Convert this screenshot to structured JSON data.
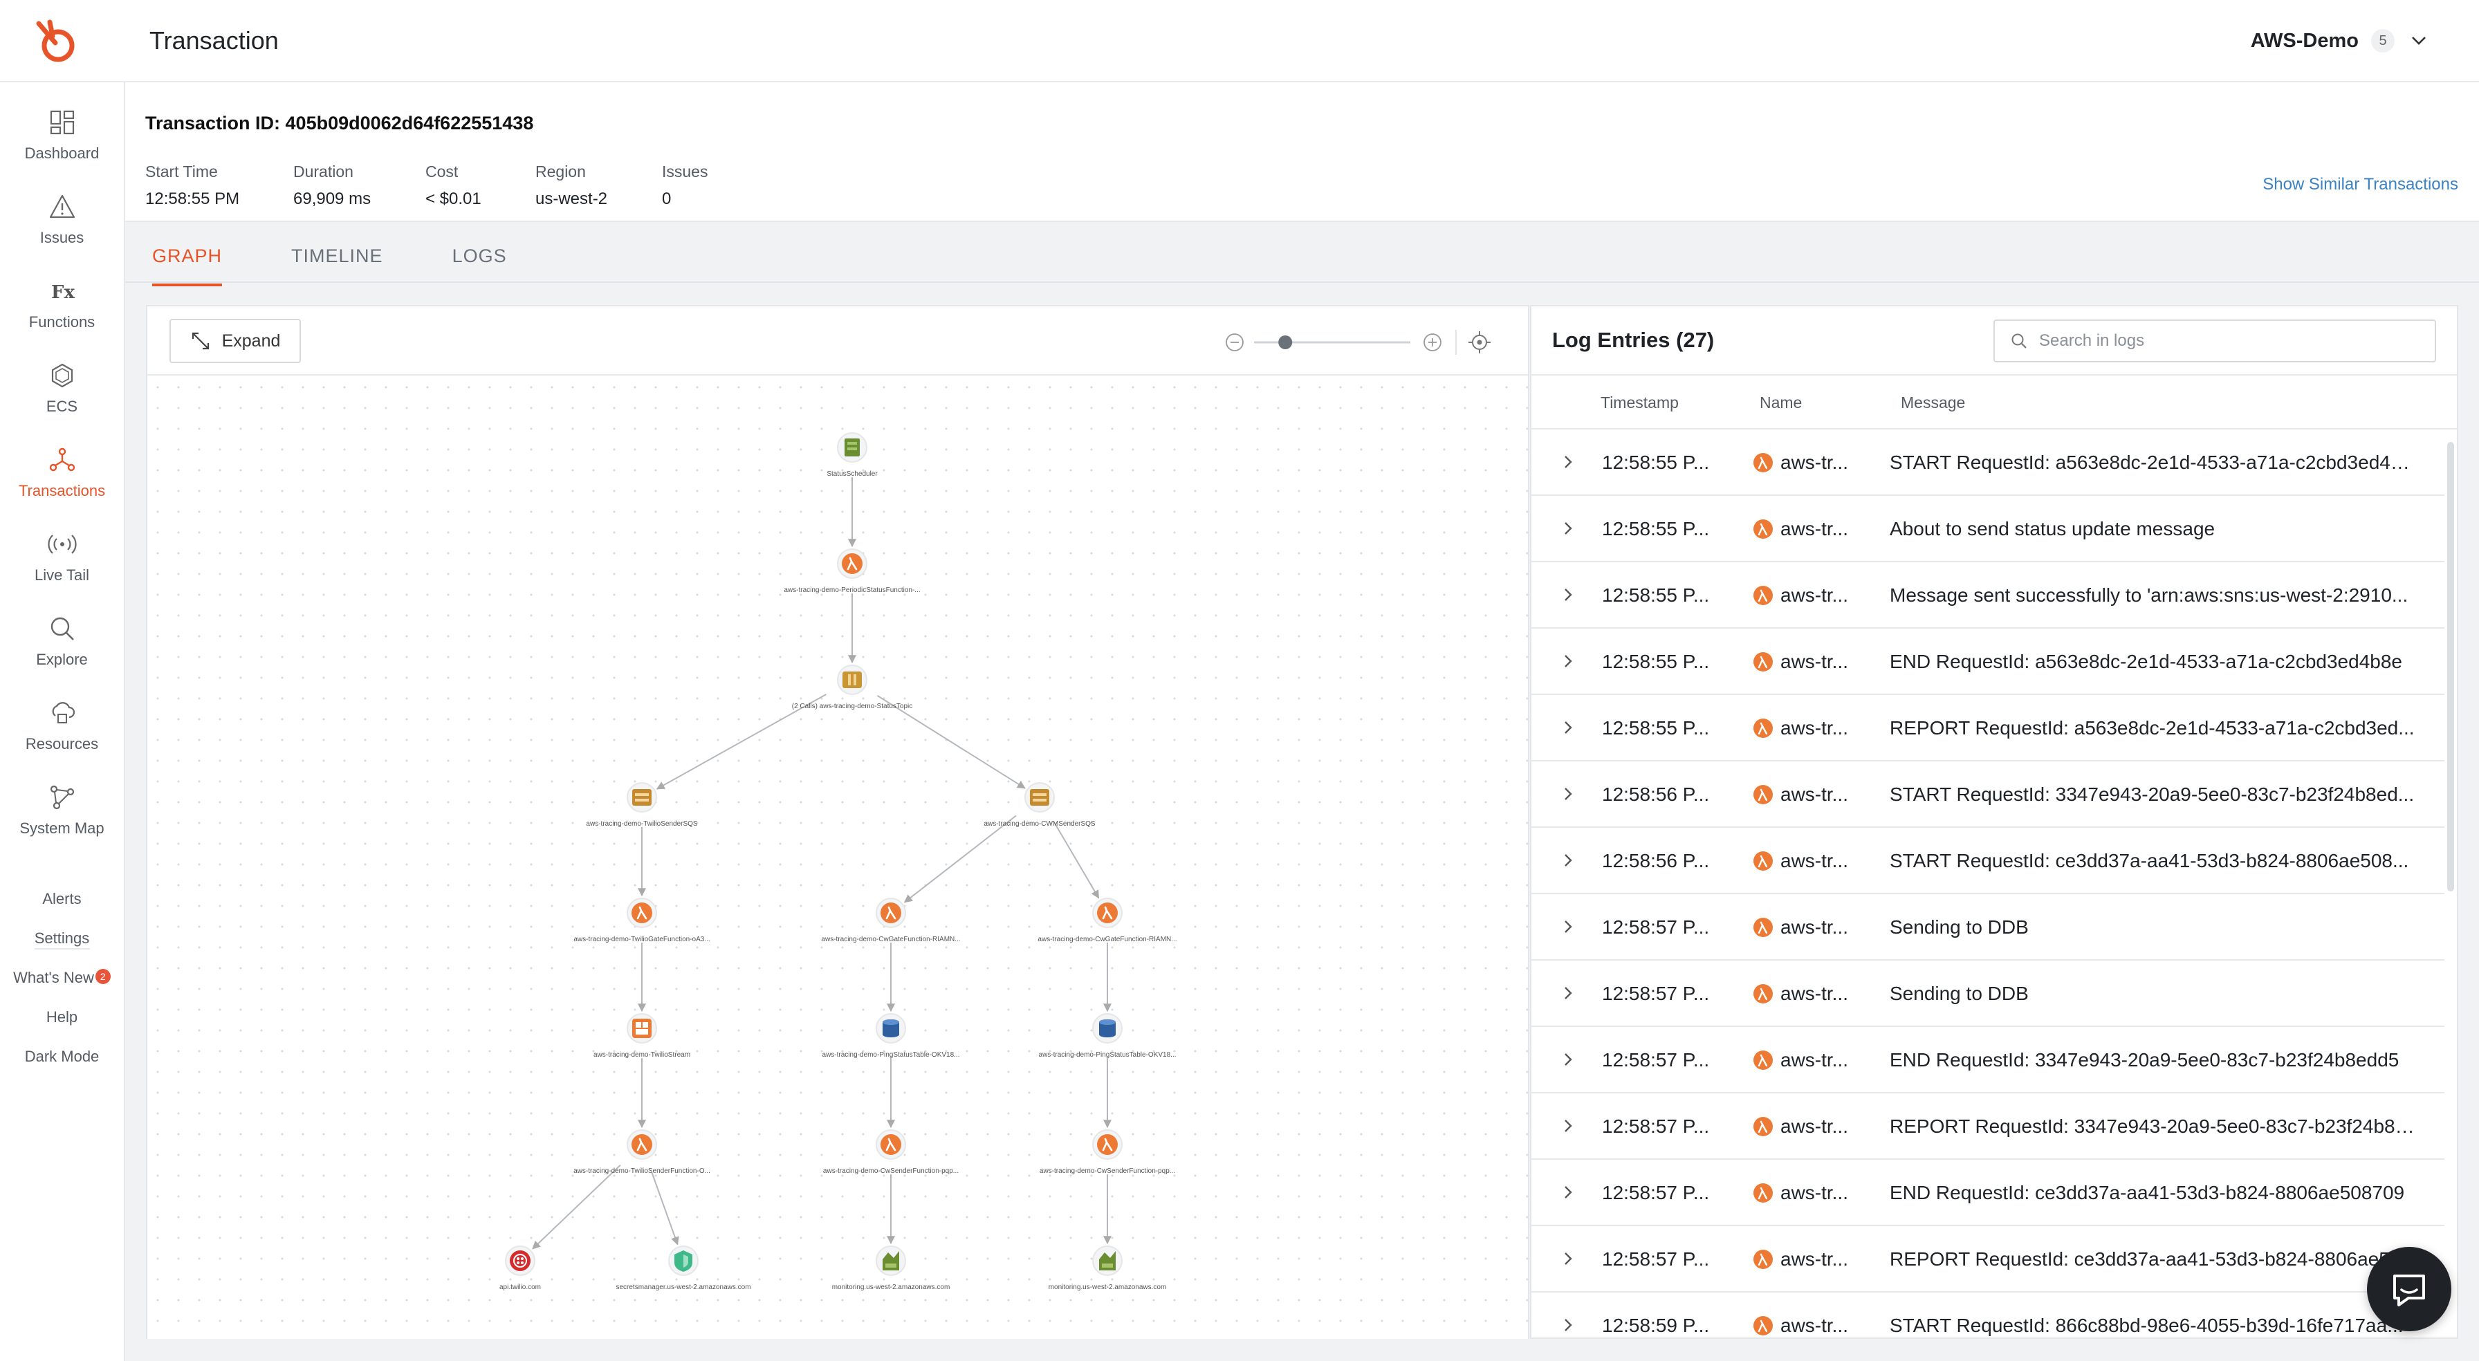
{
  "header": {
    "title": "Transaction",
    "org_name": "AWS-Demo",
    "org_count": "5"
  },
  "sidebar": {
    "items": [
      {
        "label": "Dashboard",
        "icon": "dashboard-icon"
      },
      {
        "label": "Issues",
        "icon": "warning-icon"
      },
      {
        "label": "Functions",
        "icon": "fx-icon"
      },
      {
        "label": "ECS",
        "icon": "ecs-icon"
      },
      {
        "label": "Transactions",
        "icon": "transactions-icon",
        "active": true
      },
      {
        "label": "Live Tail",
        "icon": "broadcast-icon"
      },
      {
        "label": "Explore",
        "icon": "search-icon"
      },
      {
        "label": "Resources",
        "icon": "resources-icon"
      },
      {
        "label": "System Map",
        "icon": "system-map-icon"
      }
    ],
    "links": [
      {
        "label": "Alerts"
      },
      {
        "label": "Settings"
      },
      {
        "label": "What's New",
        "badge": "2"
      },
      {
        "label": "Help"
      },
      {
        "label": "Dark Mode"
      }
    ]
  },
  "transaction": {
    "id_label": "Transaction ID: 405b09d0062d64f622551438",
    "meta": [
      {
        "key": "Start Time",
        "value": "12:58:55 PM"
      },
      {
        "key": "Duration",
        "value": "69,909 ms"
      },
      {
        "key": "Cost",
        "value": "< $0.01"
      },
      {
        "key": "Region",
        "value": "us-west-2"
      },
      {
        "key": "Issues",
        "value": "0"
      }
    ],
    "similar_link": "Show Similar Transactions"
  },
  "tabs": [
    {
      "label": "GRAPH",
      "active": true
    },
    {
      "label": "TIMELINE"
    },
    {
      "label": "LOGS"
    }
  ],
  "graph": {
    "expand_label": "Expand",
    "zoom_level": 0.2,
    "nodes": [
      {
        "label": "StatusScheduler",
        "kind": "scheduler-icon"
      },
      {
        "label": "aws-tracing-demo-PeriodicStatusFunction-...",
        "kind": "lambda-icon"
      },
      {
        "label": "(2 Calls) aws-tracing-demo-StatusTopic",
        "kind": "sns-icon"
      },
      {
        "label": "aws-tracing-demo-TwilioSenderSQS",
        "kind": "sqs-icon"
      },
      {
        "label": "aws-tracing-demo-CWMSenderSQS",
        "kind": "sqs-icon"
      },
      {
        "label": "aws-tracing-demo-TwilioGateFunction-oA3...",
        "kind": "lambda-icon"
      },
      {
        "label": "aws-tracing-demo-CwGateFunction-RIAMN...",
        "kind": "lambda-icon"
      },
      {
        "label": "aws-tracing-demo-CwGateFunction-RIAMN...",
        "kind": "lambda-icon"
      },
      {
        "label": "aws-tracing-demo-TwilioStream",
        "kind": "kinesis-icon"
      },
      {
        "label": "aws-tracing-demo-PingStatusTable-OKV18...",
        "kind": "dynamodb-icon"
      },
      {
        "label": "aws-tracing-demo-PingStatusTable-OKV18...",
        "kind": "dynamodb-icon"
      },
      {
        "label": "aws-tracing-demo-TwilioSenderFunction-O...",
        "kind": "lambda-icon"
      },
      {
        "label": "aws-tracing-demo-CwSenderFunction-pqp...",
        "kind": "lambda-icon"
      },
      {
        "label": "aws-tracing-demo-CwSenderFunction-pqp...",
        "kind": "lambda-icon"
      },
      {
        "label": "api.twilio.com",
        "kind": "external-api-icon"
      },
      {
        "label": "secretsmanager.us-west-2.amazonaws.com",
        "kind": "secrets-icon"
      },
      {
        "label": "monitoring.us-west-2.amazonaws.com",
        "kind": "cloudwatch-icon"
      },
      {
        "label": "monitoring.us-west-2.amazonaws.com",
        "kind": "cloudwatch-icon"
      }
    ]
  },
  "logs": {
    "title": "Log Entries (27)",
    "search_placeholder": "Search in logs",
    "columns": [
      "Timestamp",
      "Name",
      "Message"
    ],
    "entries": [
      {
        "timestamp": "12:58:55 P...",
        "name": "aws-tr...",
        "message": "START RequestId: a563e8dc-2e1d-4533-a71a-c2cbd3ed4b..."
      },
      {
        "timestamp": "12:58:55 P...",
        "name": "aws-tr...",
        "message": "About to send status update message"
      },
      {
        "timestamp": "12:58:55 P...",
        "name": "aws-tr...",
        "message": "Message sent successfully to 'arn:aws:sns:us-west-2:2910..."
      },
      {
        "timestamp": "12:58:55 P...",
        "name": "aws-tr...",
        "message": "END RequestId: a563e8dc-2e1d-4533-a71a-c2cbd3ed4b8e"
      },
      {
        "timestamp": "12:58:55 P...",
        "name": "aws-tr...",
        "message": "REPORT RequestId: a563e8dc-2e1d-4533-a71a-c2cbd3ed..."
      },
      {
        "timestamp": "12:58:56 P...",
        "name": "aws-tr...",
        "message": "START RequestId: 3347e943-20a9-5ee0-83c7-b23f24b8ed..."
      },
      {
        "timestamp": "12:58:56 P...",
        "name": "aws-tr...",
        "message": "START RequestId: ce3dd37a-aa41-53d3-b824-8806ae508..."
      },
      {
        "timestamp": "12:58:57 P...",
        "name": "aws-tr...",
        "message": "Sending to DDB"
      },
      {
        "timestamp": "12:58:57 P...",
        "name": "aws-tr...",
        "message": "Sending to DDB"
      },
      {
        "timestamp": "12:58:57 P...",
        "name": "aws-tr...",
        "message": "END RequestId: 3347e943-20a9-5ee0-83c7-b23f24b8edd5"
      },
      {
        "timestamp": "12:58:57 P...",
        "name": "aws-tr...",
        "message": "REPORT RequestId: 3347e943-20a9-5ee0-83c7-b23f24b8e..."
      },
      {
        "timestamp": "12:58:57 P...",
        "name": "aws-tr...",
        "message": "END RequestId: ce3dd37a-aa41-53d3-b824-8806ae508709"
      },
      {
        "timestamp": "12:58:57 P...",
        "name": "aws-tr...",
        "message": "REPORT RequestId: ce3dd37a-aa41-53d3-b824-8806ae5..."
      },
      {
        "timestamp": "12:58:59 P...",
        "name": "aws-tr...",
        "message": "START RequestId: 866c88bd-98e6-4055-b39d-16fe717aa..."
      }
    ]
  },
  "colors": {
    "accent": "#e8542a",
    "link": "#3b82c4",
    "lambda": "#ec7a35"
  }
}
